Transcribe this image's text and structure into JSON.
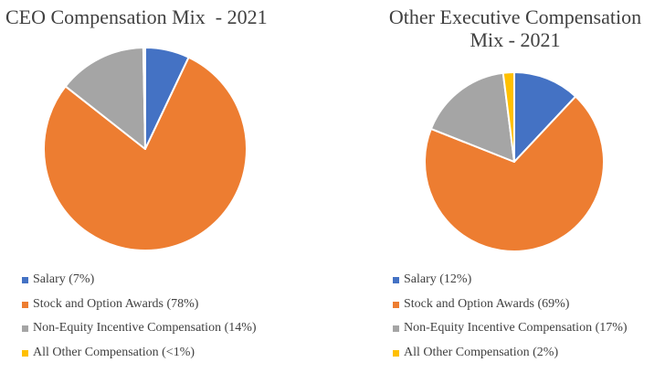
{
  "chart_data": [
    {
      "type": "pie",
      "title": "CEO Compensation Mix  - 2021",
      "start_angle_deg": 0,
      "direction": "clockwise",
      "slices": [
        {
          "name": "Salary",
          "value": 7,
          "legend": "Salary (7%)",
          "color": "#4472C4"
        },
        {
          "name": "Stock and Option Awards",
          "value": 78,
          "legend": "Stock and Option Awards (78%)",
          "color": "#ED7D31"
        },
        {
          "name": "Non-Equity Incentive Compensation",
          "value": 14,
          "legend": "Non-Equity Incentive Compensation (14%)",
          "color": "#A5A5A5"
        },
        {
          "name": "All Other Compensation",
          "value": 0.3,
          "legend": "All Other Compensation (<1%)",
          "color": "#FFC000"
        }
      ],
      "legend_position": "bottom"
    },
    {
      "type": "pie",
      "title": "Other Executive Compensation\nMix - 2021",
      "start_angle_deg": 0,
      "direction": "clockwise",
      "slices": [
        {
          "name": "Salary",
          "value": 12,
          "legend": "Salary (12%)",
          "color": "#4472C4"
        },
        {
          "name": "Stock and Option Awards",
          "value": 69,
          "legend": "Stock and Option Awards (69%)",
          "color": "#ED7D31"
        },
        {
          "name": "Non-Equity Incentive Compensation",
          "value": 17,
          "legend": "Non-Equity Incentive Compensation (17%)",
          "color": "#A5A5A5"
        },
        {
          "name": "All Other Compensation",
          "value": 2,
          "legend": "All Other Compensation (2%)",
          "color": "#FFC000"
        }
      ],
      "legend_position": "bottom"
    }
  ]
}
